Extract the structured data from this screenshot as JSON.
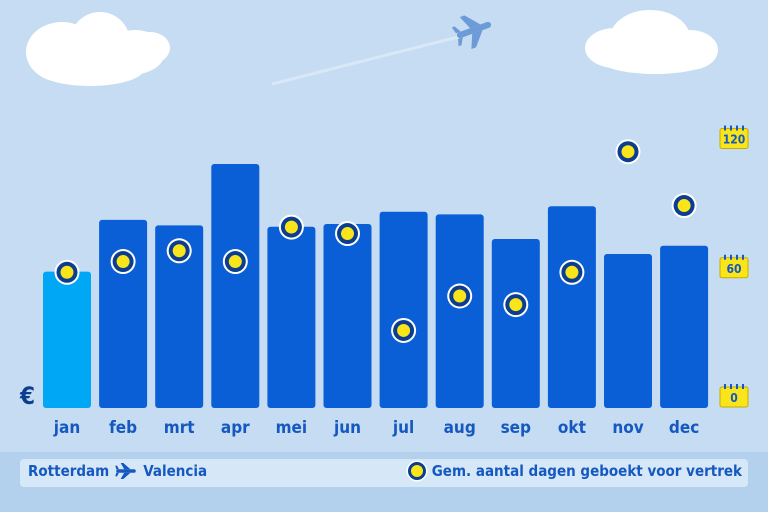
{
  "chart_data": {
    "type": "bar",
    "categories": [
      "jan",
      "feb",
      "mrt",
      "apr",
      "mei",
      "jun",
      "jul",
      "aug",
      "sep",
      "okt",
      "nov",
      "dec"
    ],
    "series": [
      {
        "values": [
          1.0,
          1.38,
          1.34,
          1.79,
          1.33,
          1.35,
          1.44,
          1.42,
          1.24,
          1.48,
          1.13,
          1.19
        ]
      },
      {
        "name": "Gem. aantal dagen geboekt voor vertrek",
        "values": [
          63,
          68,
          73,
          68,
          84,
          81,
          36,
          52,
          48,
          63,
          119,
          94
        ]
      }
    ],
    "currency_label": "€",
    "right_axis": {
      "ticks": [
        0,
        60,
        120
      ],
      "ylim": [
        0,
        130
      ]
    },
    "colors": {
      "highlight_bar": "#00a7f5",
      "bar": "#0a5fd6",
      "marker_fill": "#f9e51a",
      "marker_ring": "#0b3d91"
    }
  },
  "footer": {
    "origin": "Rotterdam",
    "destination": "Valencia",
    "legend_label": "Gem. aantal dagen geboekt voor vertrek"
  }
}
